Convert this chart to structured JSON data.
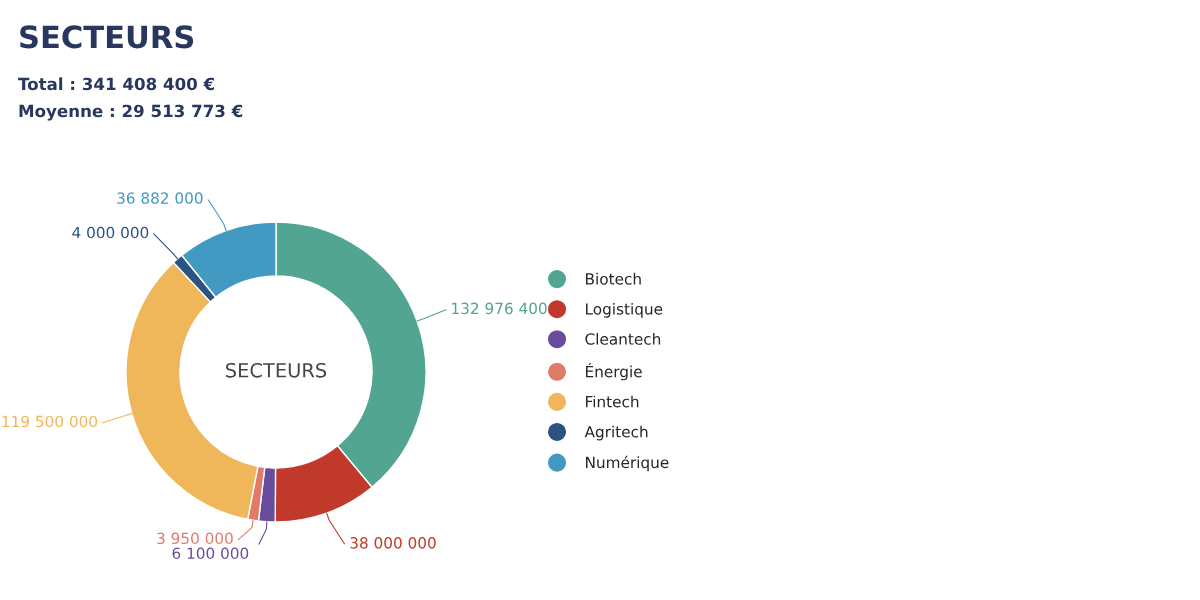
{
  "chart_data": {
    "type": "donut",
    "title": "SECTEURS",
    "annotations": [
      "Total : 341 408 400 €",
      "Moyenne : 29 513 773 €",
      "SECTEURS"
    ],
    "categories": [
      "Biotech",
      "Logistique",
      "Cleantech",
      "Énergie",
      "Fintech",
      "Agritech",
      "Numérique"
    ],
    "values": [
      132976400,
      38000000,
      6100000,
      3950000,
      119500000,
      4000000,
      36882000
    ],
    "colors": [
      "#52a591",
      "#c0392b",
      "#6a4c9c",
      "#e07b6a",
      "#efb65a",
      "#2c5282",
      "#4299c1"
    ],
    "value_labels": [
      "132 976 400",
      "38 000 000",
      "6 100 000",
      "3 950 000",
      "119 500 000",
      "4 000 000",
      "36 882 000"
    ],
    "legend": "right"
  }
}
